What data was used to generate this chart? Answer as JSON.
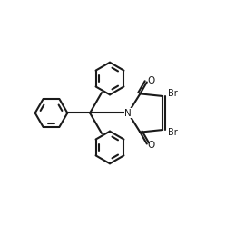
{
  "background_color": "#ffffff",
  "line_color": "#1a1a1a",
  "line_width": 1.5,
  "font_size_atom": 7.5,
  "font_size_br": 7.0,
  "xlim": [
    0,
    10
  ],
  "ylim": [
    0,
    10
  ]
}
